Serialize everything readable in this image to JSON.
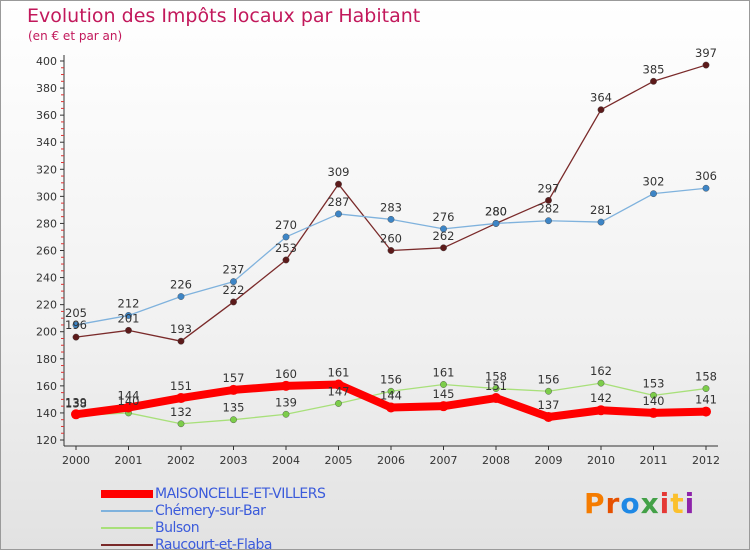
{
  "title": "Evolution des Impôts locaux par Habitant",
  "subtitle": "(en € et par an)",
  "logo_text": "Proxiti",
  "logo_colors": [
    "#f57c00",
    "#e65100",
    "#1e88e5",
    "#43a047",
    "#e53935",
    "#fbc02d",
    "#8e24aa"
  ],
  "chart_data": {
    "type": "line",
    "title": "Evolution des Impôts locaux par Habitant",
    "subtitle": "(en € et par an)",
    "xlabel": "",
    "ylabel": "",
    "x": [
      "2000",
      "2001",
      "2002",
      "2003",
      "2004",
      "2005",
      "2006",
      "2007",
      "2008",
      "2009",
      "2010",
      "2011",
      "2012"
    ],
    "ylim": [
      120,
      400
    ],
    "yticks": [
      120,
      140,
      160,
      180,
      200,
      220,
      240,
      260,
      280,
      300,
      320,
      340,
      360,
      380,
      400
    ],
    "grid": false,
    "legend_position": "bottom-left",
    "series": [
      {
        "name": "MAISONCELLE-ET-VILLERS",
        "color": "#ff0000",
        "marker_color": "#ff0000",
        "emphasis": true,
        "values": [
          139,
          144,
          151,
          157,
          160,
          161,
          144,
          145,
          151,
          137,
          142,
          140,
          141
        ]
      },
      {
        "name": "Chémery-sur-Bar",
        "color": "#7fb2dd",
        "marker_color": "#3d85c6",
        "emphasis": false,
        "values": [
          205,
          212,
          226,
          237,
          270,
          287,
          283,
          276,
          280,
          282,
          281,
          302,
          306
        ]
      },
      {
        "name": "Bulson",
        "color": "#a8e07a",
        "marker_color": "#7ccd4a",
        "emphasis": false,
        "values": [
          138,
          140,
          132,
          135,
          139,
          147,
          156,
          161,
          158,
          156,
          162,
          153,
          158
        ]
      },
      {
        "name": "Raucourt-et-Flaba",
        "color": "#7a2a2a",
        "marker_color": "#5c1a1a",
        "emphasis": false,
        "values": [
          196,
          201,
          193,
          222,
          253,
          309,
          260,
          262,
          280,
          297,
          364,
          385,
          397
        ]
      }
    ]
  }
}
